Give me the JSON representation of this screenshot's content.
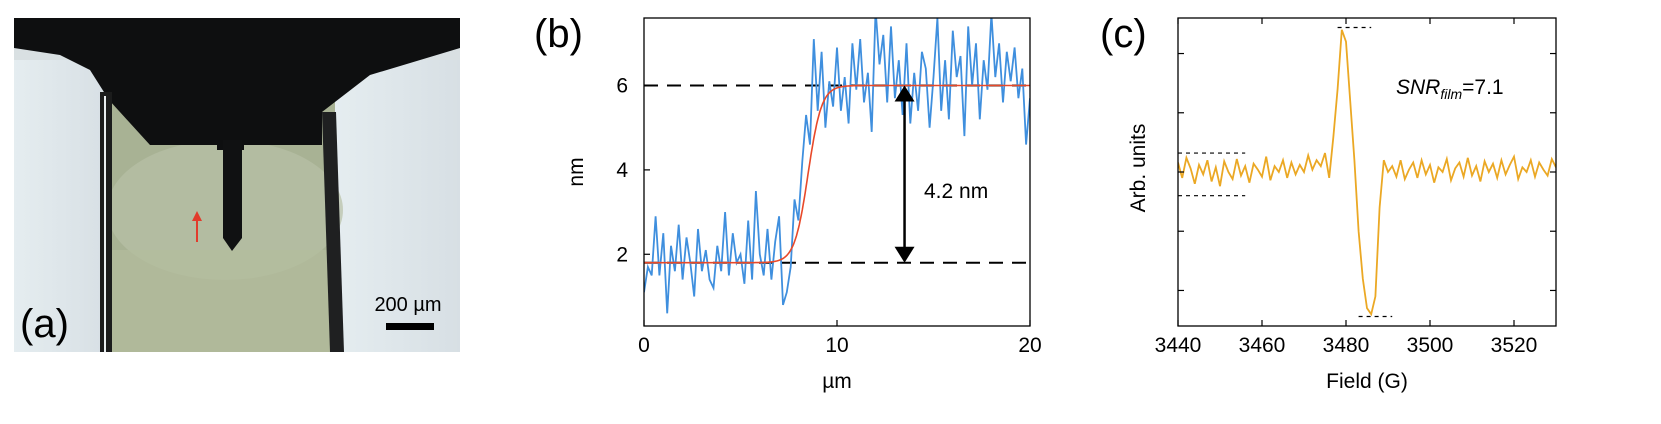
{
  "panel_a": {
    "panel_label": "(a)",
    "scale_bar_label": "200 µm",
    "colors": {
      "background": "#c7d1bb",
      "fill_region": "#a6ae8f",
      "mask": "#0d0e0e",
      "edge_light": "#e3ebef",
      "arrow": "#e23b2c"
    }
  },
  "chart_data": [
    {
      "id": "b",
      "type": "line",
      "panel_label": "(b)",
      "xlabel": "µm",
      "ylabel": "nm",
      "xlim": [
        0,
        20
      ],
      "ylim": [
        0.3,
        7.6
      ],
      "xticks": [
        0,
        10,
        20
      ],
      "yticks": [
        2,
        4,
        6
      ],
      "grid": false,
      "series": [
        {
          "color": "#3f8fde",
          "x": [
            0.0,
            0.2,
            0.4,
            0.6,
            0.8,
            1.0,
            1.2,
            1.4,
            1.6,
            1.8,
            2.0,
            2.2,
            2.4,
            2.6,
            2.8,
            3.0,
            3.2,
            3.4,
            3.6,
            3.8,
            4.0,
            4.2,
            4.4,
            4.6,
            4.8,
            5.0,
            5.2,
            5.4,
            5.6,
            5.8,
            6.0,
            6.2,
            6.4,
            6.6,
            6.8,
            7.0,
            7.2,
            7.4,
            7.6,
            7.8,
            8.0,
            8.2,
            8.4,
            8.6,
            8.8,
            9.0,
            9.2,
            9.4,
            9.6,
            9.8,
            10.0,
            10.2,
            10.4,
            10.6,
            10.8,
            11.0,
            11.2,
            11.4,
            11.6,
            11.8,
            12.0,
            12.2,
            12.4,
            12.6,
            12.8,
            13.0,
            13.2,
            13.4,
            13.6,
            13.8,
            14.0,
            14.2,
            14.4,
            14.6,
            14.8,
            15.0,
            15.2,
            15.4,
            15.6,
            15.8,
            16.0,
            16.2,
            16.4,
            16.6,
            16.8,
            17.0,
            17.2,
            17.4,
            17.6,
            17.8,
            18.0,
            18.2,
            18.4,
            18.6,
            18.8,
            19.0,
            19.2,
            19.4,
            19.6,
            19.8,
            20.0
          ],
          "y": [
            1.1,
            1.7,
            1.5,
            2.9,
            1.5,
            2.5,
            0.6,
            2.2,
            1.6,
            2.7,
            1.4,
            2.4,
            1.8,
            1.0,
            2.6,
            1.6,
            2.1,
            1.4,
            1.2,
            2.2,
            1.6,
            3.0,
            1.5,
            2.5,
            1.8,
            2.0,
            1.3,
            2.8,
            1.4,
            3.5,
            2.0,
            1.5,
            2.6,
            1.4,
            2.3,
            2.9,
            0.8,
            1.1,
            1.7,
            3.3,
            2.8,
            4.2,
            5.3,
            4.6,
            7.1,
            5.4,
            6.8,
            5.0,
            6.1,
            5.5,
            6.9,
            5.4,
            6.2,
            5.1,
            7.0,
            5.9,
            7.1,
            5.6,
            6.3,
            4.9,
            7.8,
            6.5,
            7.2,
            5.6,
            7.4,
            5.7,
            6.6,
            5.3,
            7.0,
            5.1,
            6.3,
            5.4,
            6.8,
            6.4,
            5.0,
            6.2,
            7.6,
            5.4,
            6.6,
            5.2,
            7.3,
            6.2,
            6.7,
            4.8,
            7.4,
            6.0,
            7.0,
            5.2,
            6.6,
            5.9,
            7.7,
            6.2,
            7.0,
            5.6,
            6.8,
            6.1,
            6.9,
            5.7,
            6.4,
            4.6,
            5.7
          ]
        },
        {
          "color": "#e8492a",
          "function": "logistic",
          "low": 1.8,
          "high": 6.0,
          "center": 8.5,
          "width": 0.35
        }
      ],
      "reference_lines": [
        1.8,
        6.0
      ],
      "annotation": {
        "text": "4.2 nm",
        "x": 13.5,
        "from": 1.8,
        "to": 6.0
      }
    },
    {
      "id": "c",
      "type": "line",
      "panel_label": "(c)",
      "xlabel": "Field (G)",
      "ylabel": "Arb. units",
      "xlim": [
        3440,
        3530
      ],
      "ylim": [
        -1.3,
        1.3
      ],
      "xticks": [
        3440,
        3460,
        3480,
        3500,
        3520
      ],
      "grid": false,
      "annotation": {
        "main": "SNR",
        "sub": "film",
        "rest": "=7.1"
      },
      "dashed_levels": [
        {
          "y": 1.22,
          "x1": 3478,
          "x2": 3486
        },
        {
          "y": -1.22,
          "x1": 3483,
          "x2": 3491
        },
        {
          "y": 0.16,
          "x1": 3440,
          "x2": 3456
        },
        {
          "y": -0.2,
          "x1": 3440,
          "x2": 3456
        }
      ],
      "series": [
        {
          "color": "#eba824",
          "x": [
            3440,
            3441,
            3442,
            3443,
            3444,
            3445,
            3446,
            3447,
            3448,
            3449,
            3450,
            3451,
            3452,
            3453,
            3454,
            3455,
            3456,
            3457,
            3458,
            3459,
            3460,
            3461,
            3462,
            3463,
            3464,
            3465,
            3466,
            3467,
            3468,
            3469,
            3470,
            3471,
            3472,
            3473,
            3474,
            3475,
            3476,
            3477,
            3478,
            3479,
            3480,
            3481,
            3482,
            3483,
            3484,
            3485,
            3486,
            3487,
            3488,
            3489,
            3490,
            3491,
            3492,
            3493,
            3494,
            3495,
            3496,
            3497,
            3498,
            3499,
            3500,
            3501,
            3502,
            3503,
            3504,
            3505,
            3506,
            3507,
            3508,
            3509,
            3510,
            3511,
            3512,
            3513,
            3514,
            3515,
            3516,
            3517,
            3518,
            3519,
            3520,
            3521,
            3522,
            3523,
            3524,
            3525,
            3526,
            3527,
            3528,
            3529,
            3530
          ],
          "y": [
            0.08,
            -0.05,
            0.12,
            0.03,
            -0.1,
            0.06,
            -0.02,
            0.1,
            -0.08,
            0.04,
            -0.12,
            0.09,
            0.0,
            -0.06,
            0.11,
            -0.03,
            0.05,
            -0.09,
            0.07,
            0.02,
            -0.04,
            0.13,
            -0.07,
            0.05,
            0.0,
            0.1,
            -0.05,
            0.08,
            -0.02,
            0.06,
            0.0,
            0.14,
            0.02,
            0.1,
            0.05,
            0.16,
            -0.05,
            0.3,
            0.7,
            1.2,
            1.1,
            0.6,
            0.1,
            -0.5,
            -0.9,
            -1.15,
            -1.2,
            -1.05,
            -0.3,
            0.1,
            0.0,
            0.05,
            -0.04,
            0.1,
            -0.06,
            0.02,
            0.08,
            -0.05,
            0.1,
            -0.02,
            0.06,
            -0.09,
            0.04,
            0.0,
            0.11,
            -0.07,
            0.03,
            0.08,
            -0.04,
            0.12,
            -0.03,
            0.05,
            -0.08,
            0.09,
            0.0,
            0.07,
            -0.05,
            0.1,
            -0.02,
            0.06,
            0.13,
            -0.06,
            0.04,
            0.0,
            0.1,
            -0.04,
            0.08,
            0.02,
            -0.03,
            0.11,
            0.04
          ]
        }
      ]
    }
  ]
}
